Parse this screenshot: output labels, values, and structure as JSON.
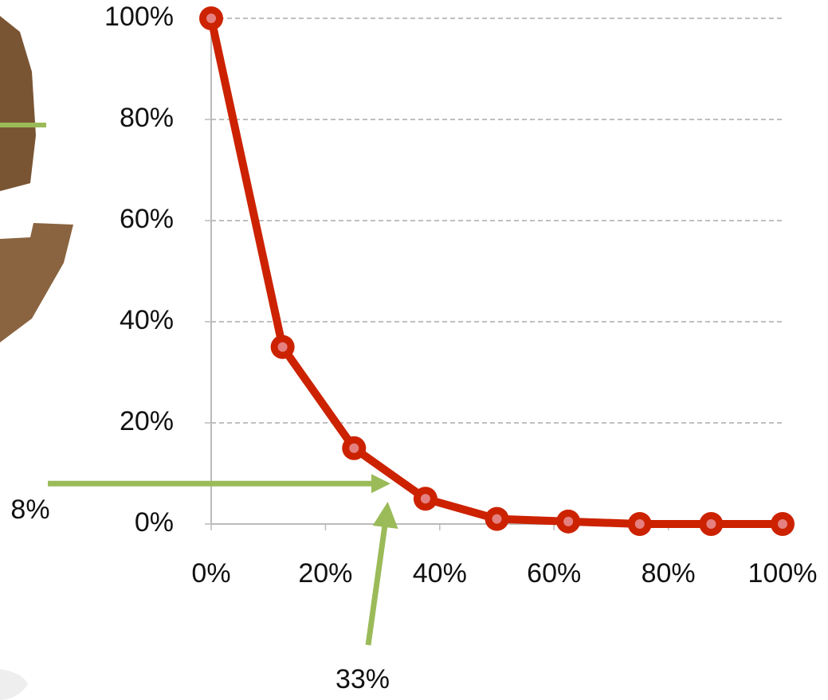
{
  "chart_data": {
    "type": "line",
    "x": [
      0,
      12.5,
      25,
      37.5,
      50,
      62.5,
      75,
      87.5,
      100
    ],
    "values": [
      100,
      35,
      15,
      5,
      1,
      0.5,
      0,
      0,
      0
    ],
    "color": "#cc2200",
    "xlim": [
      0,
      100
    ],
    "xticks": [
      {
        "value": 0,
        "label": "0%"
      },
      {
        "value": 20,
        "label": "20%"
      },
      {
        "value": 40,
        "label": "40%"
      },
      {
        "value": 60,
        "label": "60%"
      },
      {
        "value": 80,
        "label": "80%"
      },
      {
        "value": 100,
        "label": "100%"
      }
    ],
    "ylim": [
      0,
      100
    ],
    "yticks": [
      {
        "value": 0,
        "label": "0%"
      },
      {
        "value": 20,
        "label": "20%"
      },
      {
        "value": 40,
        "label": "40%"
      },
      {
        "value": 60,
        "label": "60%"
      },
      {
        "value": 80,
        "label": "80%"
      },
      {
        "value": 100,
        "label": "100%"
      }
    ],
    "grid": true,
    "annotations": [
      {
        "value": 8,
        "label": "8%",
        "axis": "y",
        "color": "#9bbb59"
      },
      {
        "value": 33,
        "label": "33%",
        "axis": "x",
        "color": "#9bbb59"
      }
    ]
  }
}
